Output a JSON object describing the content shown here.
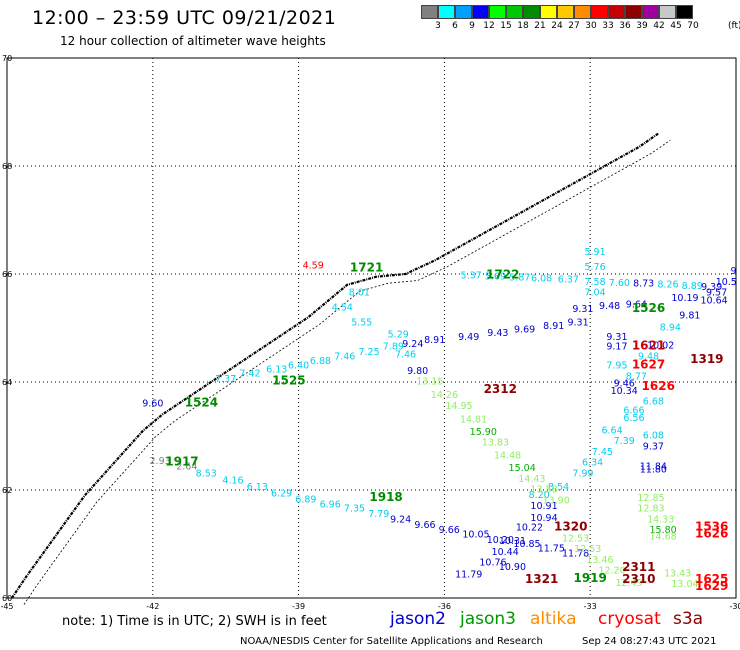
{
  "header": {
    "title": "12:00 – 23:59 UTC 09/21/2021",
    "subtitle": "12 hour collection of altimeter wave heights"
  },
  "colorbar": {
    "colors": [
      "#808080",
      "#00ffff",
      "#00a0ff",
      "#0000ff",
      "#00ff00",
      "#00c800",
      "#008c00",
      "#ffff00",
      "#ffc800",
      "#ff8c00",
      "#ff0000",
      "#c80000",
      "#8c0000",
      "#a000a0",
      "#c8c8c8",
      "#000000"
    ],
    "labels": [
      "3",
      "6",
      "9",
      "12",
      "15",
      "18",
      "21",
      "24",
      "27",
      "30",
      "33",
      "36",
      "39",
      "42",
      "45",
      "70"
    ],
    "unit": "(ft)"
  },
  "axes": {
    "lon_labels": [
      "-45",
      "-42",
      "-39",
      "-36",
      "-33",
      "-30"
    ],
    "lat_labels": [
      "70",
      "68",
      "66",
      "64",
      "62",
      "60"
    ]
  },
  "observations": [
    {
      "t": "5.91",
      "c": "#00d0f0",
      "lon": -32.9,
      "lat": 66.35
    },
    {
      "t": "5.76",
      "c": "#00d0f0",
      "lon": -32.9,
      "lat": 66.07
    },
    {
      "t": "5.37",
      "c": "#00d0f0",
      "lon": -35.45,
      "lat": 65.92
    },
    {
      "t": "5.69",
      "c": "#00d0f0",
      "lon": -34.95,
      "lat": 65.9
    },
    {
      "t": "5.87",
      "c": "#00d0f0",
      "lon": -34.45,
      "lat": 65.88
    },
    {
      "t": "6.08",
      "c": "#00d0f0",
      "lon": -34.0,
      "lat": 65.86
    },
    {
      "t": "6.37",
      "c": "#00d0f0",
      "lon": -33.45,
      "lat": 65.84
    },
    {
      "t": "7.58",
      "c": "#00d0f0",
      "lon": -32.9,
      "lat": 65.8
    },
    {
      "t": "7.60",
      "c": "#00d0f0",
      "lon": -32.4,
      "lat": 65.78
    },
    {
      "t": "8.73",
      "c": "#0000cc",
      "lon": -31.9,
      "lat": 65.77
    },
    {
      "t": "8.26",
      "c": "#00d0f0",
      "lon": -31.4,
      "lat": 65.75
    },
    {
      "t": "8.89",
      "c": "#00d0f0",
      "lon": -30.9,
      "lat": 65.72
    },
    {
      "t": "9.39",
      "c": "#0000cc",
      "lon": -30.5,
      "lat": 65.7
    },
    {
      "t": "10.5",
      "c": "#0000cc",
      "lon": -30.2,
      "lat": 65.8
    },
    {
      "t": "9",
      "c": "#0000cc",
      "lon": -30.05,
      "lat": 66.0
    },
    {
      "t": "7.04",
      "c": "#00d0f0",
      "lon": -32.9,
      "lat": 65.6
    },
    {
      "t": "10.19",
      "c": "#0000cc",
      "lon": -31.05,
      "lat": 65.5
    },
    {
      "t": "10.64",
      "c": "#0000cc",
      "lon": -30.45,
      "lat": 65.45
    },
    {
      "t": "9.57",
      "c": "#0000cc",
      "lon": -30.4,
      "lat": 65.6
    },
    {
      "t": "9.81",
      "c": "#0000cc",
      "lon": -30.95,
      "lat": 65.18
    },
    {
      "t": "8.94",
      "c": "#00d0f0",
      "lon": -31.35,
      "lat": 64.95
    },
    {
      "t": "9.31",
      "c": "#0000cc",
      "lon": -33.15,
      "lat": 65.3
    },
    {
      "t": "9.48",
      "c": "#0000cc",
      "lon": -32.6,
      "lat": 65.35
    },
    {
      "t": "9.64",
      "c": "#0000cc",
      "lon": -32.05,
      "lat": 65.38
    },
    {
      "t": "9.31",
      "c": "#0000cc",
      "lon": -32.45,
      "lat": 64.78
    },
    {
      "t": "9.17",
      "c": "#0000cc",
      "lon": -32.45,
      "lat": 64.6
    },
    {
      "t": "10.02",
      "c": "#0000cc",
      "lon": -31.55,
      "lat": 64.62
    },
    {
      "t": "9.48",
      "c": "#00d0f0",
      "lon": -31.8,
      "lat": 64.42
    },
    {
      "t": "7.95",
      "c": "#00d0f0",
      "lon": -32.45,
      "lat": 64.25
    },
    {
      "t": "8.77",
      "c": "#00d0f0",
      "lon": -32.05,
      "lat": 64.05
    },
    {
      "t": "9.46",
      "c": "#0000cc",
      "lon": -32.3,
      "lat": 63.92
    },
    {
      "t": "10.34",
      "c": "#0000cc",
      "lon": -32.3,
      "lat": 63.78
    },
    {
      "t": "6.68",
      "c": "#00d0f0",
      "lon": -31.7,
      "lat": 63.58
    },
    {
      "t": "6.66",
      "c": "#00d0f0",
      "lon": -32.1,
      "lat": 63.42
    },
    {
      "t": "6.56",
      "c": "#00d0f0",
      "lon": -32.1,
      "lat": 63.28
    },
    {
      "t": "6.64",
      "c": "#00d0f0",
      "lon": -32.55,
      "lat": 63.05
    },
    {
      "t": "6.08",
      "c": "#00d0f0",
      "lon": -31.7,
      "lat": 62.95
    },
    {
      "t": "7.39",
      "c": "#00d0f0",
      "lon": -32.3,
      "lat": 62.85
    },
    {
      "t": "9.37",
      "c": "#0000cc",
      "lon": -31.7,
      "lat": 62.75
    },
    {
      "t": "7.45",
      "c": "#00d0f0",
      "lon": -32.75,
      "lat": 62.65
    },
    {
      "t": "6.34",
      "c": "#00d0f0",
      "lon": -32.95,
      "lat": 62.45
    },
    {
      "t": "11.84",
      "c": "#0000cc",
      "lon": -31.7,
      "lat": 62.38
    },
    {
      "t": "11.80",
      "c": "#0000cc",
      "lon": -31.7,
      "lat": 62.32
    },
    {
      "t": "7.99",
      "c": "#00d0f0",
      "lon": -33.15,
      "lat": 62.25
    },
    {
      "t": "8.54",
      "c": "#00d0f0",
      "lon": -33.65,
      "lat": 62.0
    },
    {
      "t": "8.20",
      "c": "#00d0f0",
      "lon": -34.05,
      "lat": 61.85
    },
    {
      "t": "10.91",
      "c": "#0000cc",
      "lon": -33.95,
      "lat": 61.65
    },
    {
      "t": "10.94",
      "c": "#0000cc",
      "lon": -33.95,
      "lat": 61.43
    },
    {
      "t": "10.22",
      "c": "#0000cc",
      "lon": -34.25,
      "lat": 61.25
    },
    {
      "t": "10.31",
      "c": "#0000cc",
      "lon": -34.6,
      "lat": 61.0
    },
    {
      "t": "10.44",
      "c": "#0000cc",
      "lon": -34.75,
      "lat": 60.8
    },
    {
      "t": "10.76",
      "c": "#0000cc",
      "lon": -35.0,
      "lat": 60.6
    },
    {
      "t": "10.90",
      "c": "#0000cc",
      "lon": -34.6,
      "lat": 60.52
    },
    {
      "t": "11.79",
      "c": "#0000cc",
      "lon": -35.5,
      "lat": 60.38
    },
    {
      "t": "9.80",
      "c": "#0000cc",
      "lon": -36.55,
      "lat": 64.15
    },
    {
      "t": "7.46",
      "c": "#00d0f0",
      "lon": -36.8,
      "lat": 64.45
    },
    {
      "t": "5.29",
      "c": "#00d0f0",
      "lon": -36.95,
      "lat": 64.82
    },
    {
      "t": "5.55",
      "c": "#00d0f0",
      "lon": -37.7,
      "lat": 65.05
    },
    {
      "t": "4.54",
      "c": "#00d0f0",
      "lon": -38.1,
      "lat": 65.32
    },
    {
      "t": "8.01",
      "c": "#00d0f0",
      "lon": -37.75,
      "lat": 65.6
    },
    {
      "t": "8.91",
      "c": "#0000cc",
      "lon": -36.2,
      "lat": 64.72
    },
    {
      "t": "9.49",
      "c": "#0000cc",
      "lon": -35.5,
      "lat": 64.78
    },
    {
      "t": "9.43",
      "c": "#0000cc",
      "lon": -34.9,
      "lat": 64.85
    },
    {
      "t": "9.69",
      "c": "#0000cc",
      "lon": -34.35,
      "lat": 64.92
    },
    {
      "t": "8.91",
      "c": "#0000cc",
      "lon": -33.75,
      "lat": 64.98
    },
    {
      "t": "9.31",
      "c": "#0000cc",
      "lon": -33.25,
      "lat": 65.05
    },
    {
      "t": "9.24",
      "c": "#0000cc",
      "lon": -36.65,
      "lat": 64.65
    },
    {
      "t": "7.89",
      "c": "#00d0f0",
      "lon": -37.05,
      "lat": 64.6
    },
    {
      "t": "7.25",
      "c": "#00d0f0",
      "lon": -37.55,
      "lat": 64.5
    },
    {
      "t": "7.46",
      "c": "#00d0f0",
      "lon": -38.05,
      "lat": 64.42
    },
    {
      "t": "6.88",
      "c": "#00d0f0",
      "lon": -38.55,
      "lat": 64.33
    },
    {
      "t": "6.40",
      "c": "#00d0f0",
      "lon": -39.0,
      "lat": 64.25
    },
    {
      "t": "6.13",
      "c": "#00d0f0",
      "lon": -39.45,
      "lat": 64.18
    },
    {
      "t": "7.42",
      "c": "#00d0f0",
      "lon": -40.0,
      "lat": 64.1
    },
    {
      "t": "7.37",
      "c": "#00d0f0",
      "lon": -40.5,
      "lat": 64.0
    },
    {
      "t": "9.60",
      "c": "#0000cc",
      "lon": -42.0,
      "lat": 63.55
    },
    {
      "t": "2.93",
      "c": "#808080",
      "lon": -41.85,
      "lat": 62.48
    },
    {
      "t": "2.64",
      "c": "#808080",
      "lon": -41.3,
      "lat": 62.38
    },
    {
      "t": "8.53",
      "c": "#00d0f0",
      "lon": -40.9,
      "lat": 62.25
    },
    {
      "t": "4.16",
      "c": "#00d0f0",
      "lon": -40.35,
      "lat": 62.12
    },
    {
      "t": "6.13",
      "c": "#00d0f0",
      "lon": -39.85,
      "lat": 62.0
    },
    {
      "t": "6.29",
      "c": "#00d0f0",
      "lon": -39.35,
      "lat": 61.88
    },
    {
      "t": "6.89",
      "c": "#00d0f0",
      "lon": -38.85,
      "lat": 61.77
    },
    {
      "t": "6.96",
      "c": "#00d0f0",
      "lon": -38.35,
      "lat": 61.68
    },
    {
      "t": "7.35",
      "c": "#00d0f0",
      "lon": -37.85,
      "lat": 61.6
    },
    {
      "t": "7.79",
      "c": "#00d0f0",
      "lon": -37.35,
      "lat": 61.5
    },
    {
      "t": "9.24",
      "c": "#0000cc",
      "lon": -36.9,
      "lat": 61.4
    },
    {
      "t": "9.66",
      "c": "#0000cc",
      "lon": -36.4,
      "lat": 61.3
    },
    {
      "t": "9.66",
      "c": "#0000cc",
      "lon": -35.9,
      "lat": 61.2
    },
    {
      "t": "10.05",
      "c": "#0000cc",
      "lon": -35.35,
      "lat": 61.12
    },
    {
      "t": "10.20",
      "c": "#0000cc",
      "lon": -34.85,
      "lat": 61.02
    },
    {
      "t": "10.85",
      "c": "#0000cc",
      "lon": -34.3,
      "lat": 60.94
    },
    {
      "t": "11.75",
      "c": "#0000cc",
      "lon": -33.8,
      "lat": 60.86
    },
    {
      "t": "11.78",
      "c": "#0000cc",
      "lon": -33.3,
      "lat": 60.77
    },
    {
      "t": "13.15",
      "c": "#90ee60",
      "lon": -36.3,
      "lat": 63.95
    },
    {
      "t": "14.26",
      "c": "#90ee60",
      "lon": -36.0,
      "lat": 63.7
    },
    {
      "t": "14.95",
      "c": "#90ee60",
      "lon": -35.7,
      "lat": 63.5
    },
    {
      "t": "14.81",
      "c": "#90ee60",
      "lon": -35.4,
      "lat": 63.25
    },
    {
      "t": "15.90",
      "c": "#00b000",
      "lon": -35.2,
      "lat": 63.02
    },
    {
      "t": "13.83",
      "c": "#90ee60",
      "lon": -34.95,
      "lat": 62.82
    },
    {
      "t": "14.48",
      "c": "#90ee60",
      "lon": -34.7,
      "lat": 62.58
    },
    {
      "t": "15.04",
      "c": "#00b000",
      "lon": -34.4,
      "lat": 62.35
    },
    {
      "t": "14.43",
      "c": "#90ee60",
      "lon": -34.2,
      "lat": 62.15
    },
    {
      "t": "13.58",
      "c": "#90ee60",
      "lon": -33.95,
      "lat": 61.95
    },
    {
      "t": "13.90",
      "c": "#90ee60",
      "lon": -33.7,
      "lat": 61.75
    },
    {
      "t": "12.53",
      "c": "#90ee60",
      "lon": -33.3,
      "lat": 61.05
    },
    {
      "t": "12.53",
      "c": "#90ee60",
      "lon": -33.05,
      "lat": 60.85
    },
    {
      "t": "13.46",
      "c": "#90ee60",
      "lon": -32.8,
      "lat": 60.65
    },
    {
      "t": "12.20",
      "c": "#90ee60",
      "lon": -32.55,
      "lat": 60.45
    },
    {
      "t": "12.49",
      "c": "#90ee60",
      "lon": -32.2,
      "lat": 60.22
    },
    {
      "t": "12.85",
      "c": "#90ee60",
      "lon": -31.75,
      "lat": 61.8
    },
    {
      "t": "12.83",
      "c": "#90ee60",
      "lon": -31.75,
      "lat": 61.6
    },
    {
      "t": "14.33",
      "c": "#90ee60",
      "lon": -31.55,
      "lat": 61.4
    },
    {
      "t": "15.80",
      "c": "#00b000",
      "lon": -31.5,
      "lat": 61.2
    },
    {
      "t": "14.68",
      "c": "#90ee60",
      "lon": -31.5,
      "lat": 61.08
    },
    {
      "t": "13.04",
      "c": "#90ee60",
      "lon": -31.05,
      "lat": 60.2
    },
    {
      "t": "13.43",
      "c": "#90ee60",
      "lon": -31.2,
      "lat": 60.4
    },
    {
      "t": "4.59",
      "c": "#ff0000",
      "lon": -38.7,
      "lat": 66.1
    },
    {
      "t": "1721",
      "c": "#008c00",
      "lon": -37.6,
      "lat": 66.05,
      "big": true
    },
    {
      "t": "1722",
      "c": "#008c00",
      "lon": -34.8,
      "lat": 65.92,
      "big": true
    },
    {
      "t": "1526",
      "c": "#008c00",
      "lon": -31.8,
      "lat": 65.3,
      "big": true
    },
    {
      "t": "1621",
      "c": "#c80000",
      "lon": -31.8,
      "lat": 64.6,
      "big": true
    },
    {
      "t": "1319",
      "c": "#8c0000",
      "lon": -30.6,
      "lat": 64.35,
      "big": true
    },
    {
      "t": "1627",
      "c": "#ff0000",
      "lon": -31.8,
      "lat": 64.25,
      "big": true
    },
    {
      "t": "1626",
      "c": "#ff0000",
      "lon": -31.6,
      "lat": 63.85,
      "big": true
    },
    {
      "t": "2312",
      "c": "#8c0000",
      "lon": -34.85,
      "lat": 63.8,
      "big": true
    },
    {
      "t": "1525",
      "c": "#008c00",
      "lon": -39.2,
      "lat": 63.95,
      "big": true
    },
    {
      "t": "1524",
      "c": "#008c00",
      "lon": -41.0,
      "lat": 63.55,
      "big": true
    },
    {
      "t": "1917",
      "c": "#008c00",
      "lon": -41.4,
      "lat": 62.45,
      "big": true
    },
    {
      "t": "1918",
      "c": "#008c00",
      "lon": -37.2,
      "lat": 61.8,
      "big": true
    },
    {
      "t": "1320",
      "c": "#8c0000",
      "lon": -33.4,
      "lat": 61.25,
      "big": true
    },
    {
      "t": "1536",
      "c": "#ff0000",
      "lon": -30.5,
      "lat": 61.25,
      "big": true
    },
    {
      "t": "1626",
      "c": "#ff0000",
      "lon": -30.5,
      "lat": 61.12,
      "big": true
    },
    {
      "t": "2311",
      "c": "#8c0000",
      "lon": -32.0,
      "lat": 60.5,
      "big": true
    },
    {
      "t": "2310",
      "c": "#8c0000",
      "lon": -32.0,
      "lat": 60.28,
      "big": true
    },
    {
      "t": "1321",
      "c": "#8c0000",
      "lon": -34.0,
      "lat": 60.28,
      "big": true
    },
    {
      "t": "1919",
      "c": "#008c00",
      "lon": -33.0,
      "lat": 60.3,
      "big": true
    },
    {
      "t": "1625",
      "c": "#ff0000",
      "lon": -30.5,
      "lat": 60.28,
      "big": true
    },
    {
      "t": "1629",
      "c": "#ff0000",
      "lon": -30.5,
      "lat": 60.15,
      "big": true
    }
  ],
  "footer": {
    "note": "note:  1) Time is in UTC;  2) SWH is in feet",
    "legend": [
      {
        "label": "jason2",
        "color": "#0000cc"
      },
      {
        "label": "jason3",
        "color": "#009600"
      },
      {
        "label": "altika",
        "color": "#ff8c00"
      },
      {
        "label": "cryosat",
        "color": "#ff0000"
      },
      {
        "label": "s3a",
        "color": "#8c0000"
      }
    ],
    "credit": "NOAA/NESDIS Center for Satellite Applications and Research",
    "timestamp": "Sep 24 08:27:43 UTC 2021"
  }
}
